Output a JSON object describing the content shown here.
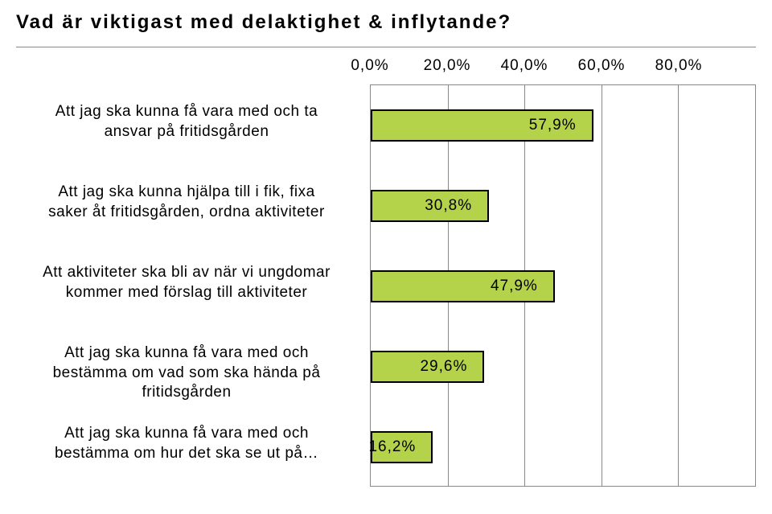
{
  "title": "Vad är viktigast med delaktighet & inflytande?",
  "chart": {
    "type": "bar",
    "orientation": "horizontal",
    "x_axis": {
      "min": 0,
      "max": 100,
      "tick_step": 20,
      "ticks": [
        "0,0%",
        "20,0%",
        "40,0%",
        "60,0%",
        "80,0%"
      ],
      "tick_fontsize": 19
    },
    "bar_color": "#b4d24a",
    "bar_border_color": "#000000",
    "grid_color": "#888888",
    "background_color": "#ffffff",
    "label_fontsize": 19,
    "value_fontsize": 19,
    "title_fontsize": 24,
    "rows": [
      {
        "label": "Att jag ska kunna få vara med och ta\nansvar på fritidsgården",
        "value": 57.9,
        "value_label": "57,9%"
      },
      {
        "label": "Att jag ska kunna hjälpa till i fik, fixa\nsaker åt fritidsgården, ordna aktiviteter",
        "value": 30.8,
        "value_label": "30,8%"
      },
      {
        "label": "Att aktiviteter ska bli av när vi ungdomar\nkommer med förslag till aktiviteter",
        "value": 47.9,
        "value_label": "47,9%"
      },
      {
        "label": "Att jag ska kunna få vara med och\nbestämma om vad som ska hända på\nfritidsgården",
        "value": 29.6,
        "value_label": "29,6%"
      },
      {
        "label": "Att jag ska kunna få vara med och\nbestämma om hur det ska se ut på…",
        "value": 16.2,
        "value_label": "16,2%"
      }
    ]
  }
}
